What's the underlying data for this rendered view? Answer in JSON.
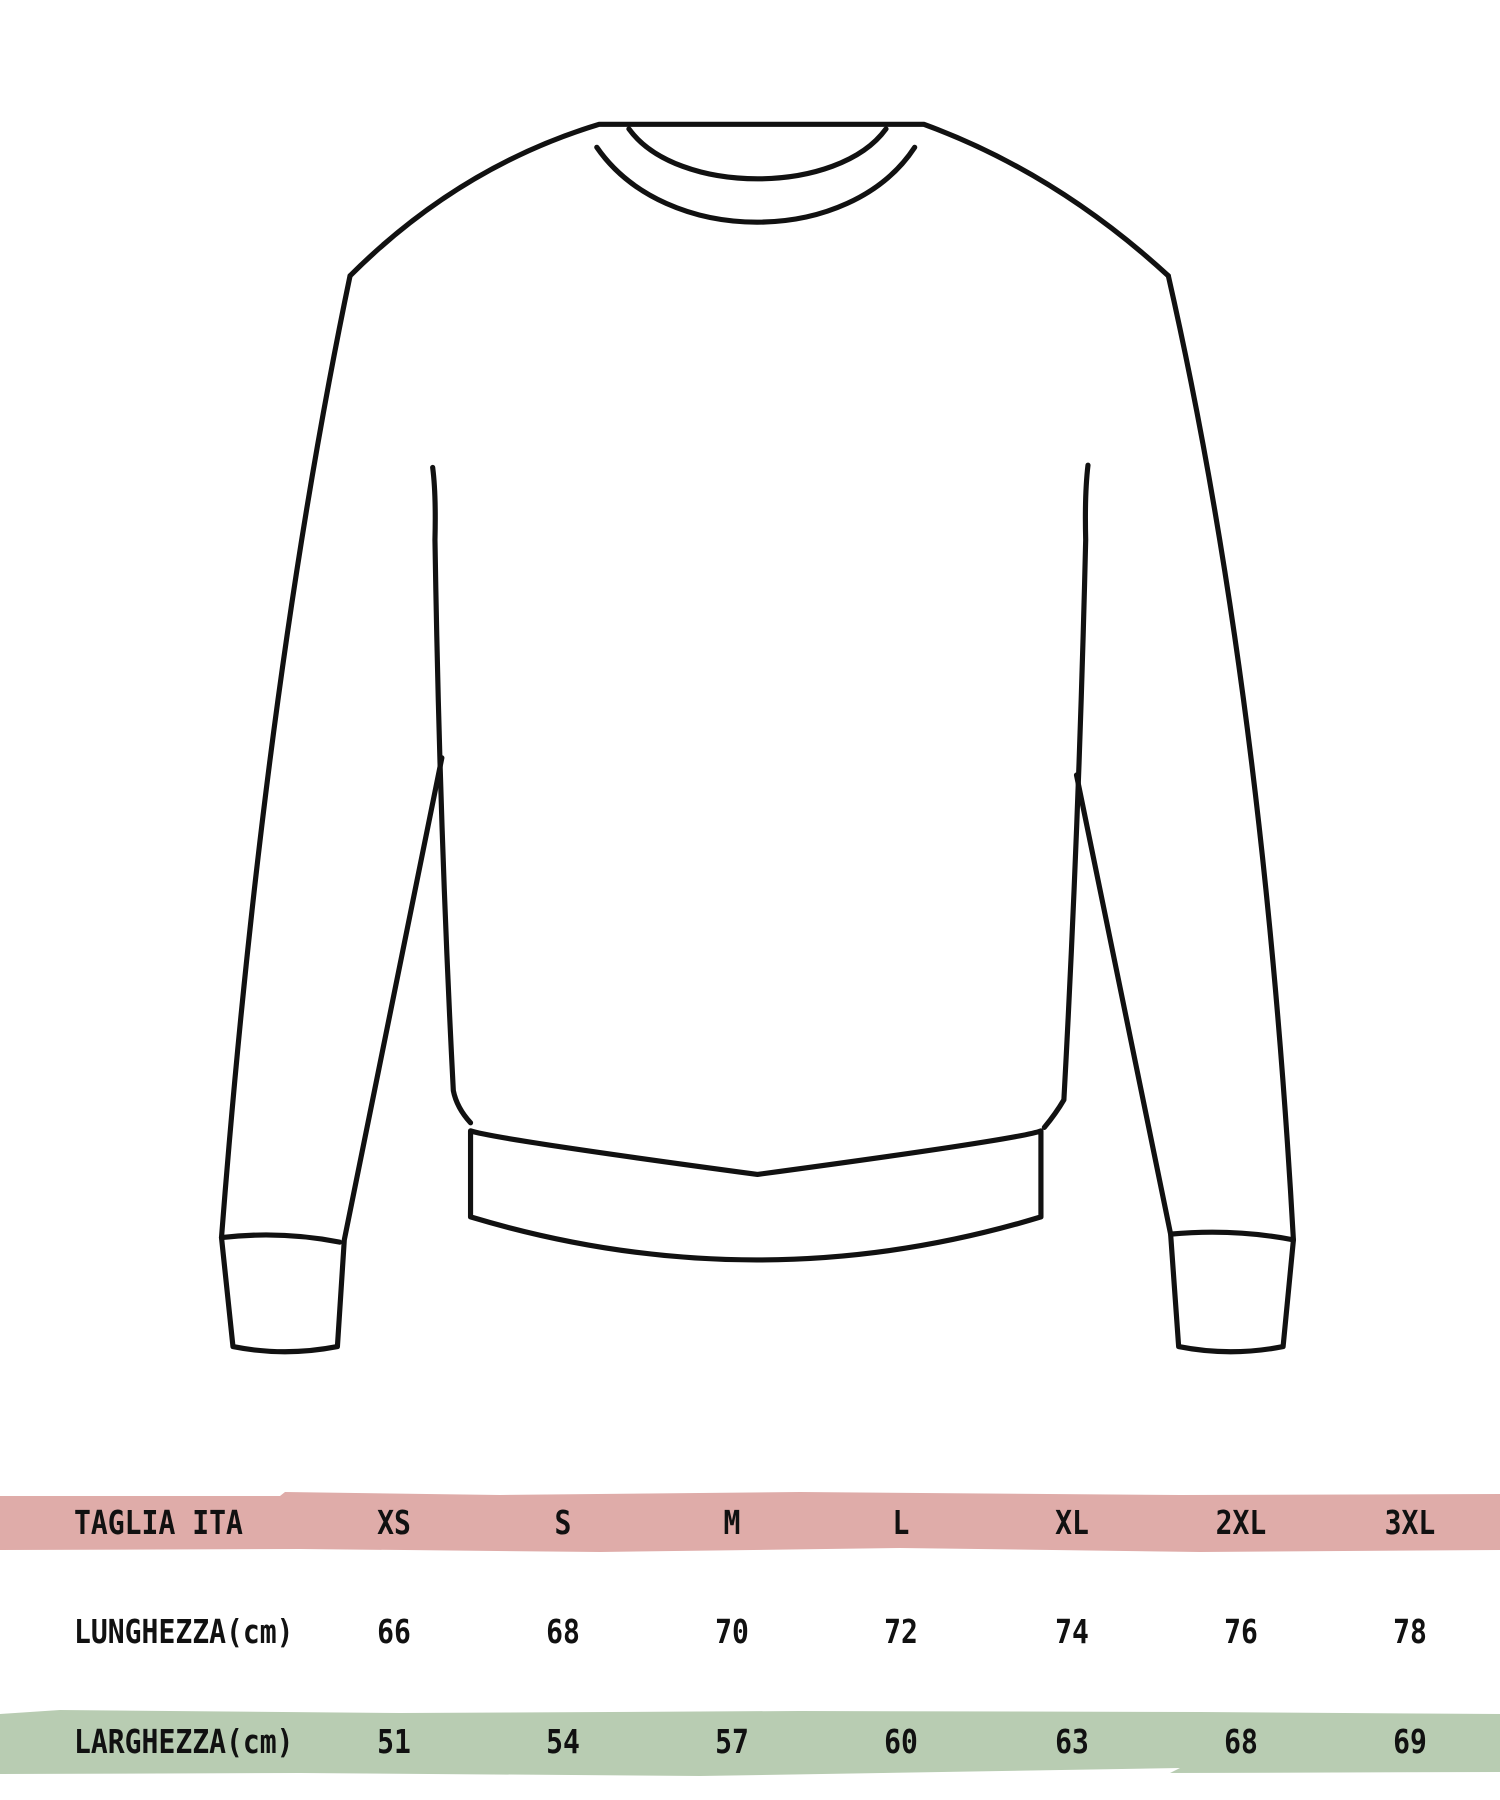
{
  "colors": {
    "size_band": "#dfaca9",
    "width_band": "#b8ccb2",
    "outline": "#111111"
  },
  "illustration": {
    "icon": "sweater-outline-icon"
  },
  "table": {
    "header": {
      "label": "TAGLIA ITA",
      "sizes": [
        "XS",
        "S",
        "M",
        "L",
        "XL",
        "2XL",
        "3XL"
      ]
    },
    "rows": [
      {
        "label": "LUNGHEZZA(cm)",
        "values": [
          "66",
          "68",
          "70",
          "72",
          "74",
          "76",
          "78"
        ]
      },
      {
        "label": "LARGHEZZA(cm)",
        "values": [
          "51",
          "54",
          "57",
          "60",
          "63",
          "68",
          "69"
        ]
      }
    ]
  }
}
